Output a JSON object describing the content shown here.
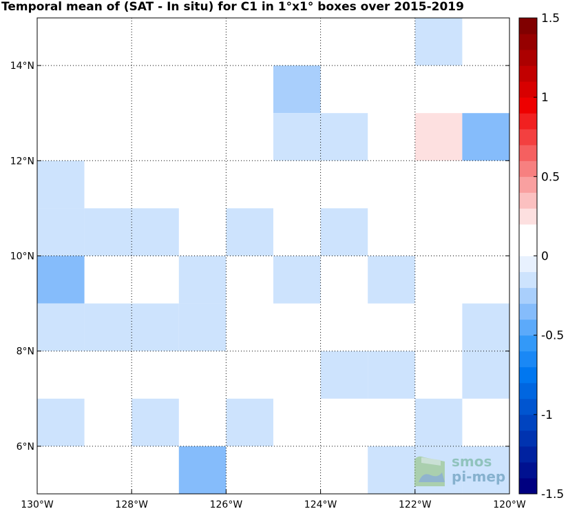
{
  "chart_data": {
    "type": "heatmap",
    "title": "Temporal mean of (SAT - In situ) for C1 in 1°x1° boxes over 2015-2019",
    "xlim": [
      -130,
      -120
    ],
    "ylim": [
      5,
      15
    ],
    "xticks": [
      {
        "v": -130,
        "label": "130°W"
      },
      {
        "v": -128,
        "label": "128°W"
      },
      {
        "v": -126,
        "label": "126°W"
      },
      {
        "v": -124,
        "label": "124°W"
      },
      {
        "v": -122,
        "label": "122°W"
      },
      {
        "v": -120,
        "label": "120°W"
      }
    ],
    "yticks": [
      {
        "v": 6,
        "label": "6°N"
      },
      {
        "v": 8,
        "label": "8°N"
      },
      {
        "v": 10,
        "label": "10°N"
      },
      {
        "v": 12,
        "label": "12°N"
      },
      {
        "v": 14,
        "label": "14°N"
      }
    ],
    "grid": true,
    "colorbar": {
      "range": [
        -1.5,
        1.5
      ],
      "ticks": [
        {
          "v": 1.5,
          "label": "1.5"
        },
        {
          "v": 1,
          "label": "1"
        },
        {
          "v": 0.5,
          "label": "0.5"
        },
        {
          "v": 0,
          "label": "0"
        },
        {
          "v": -0.5,
          "label": "-0.5"
        },
        {
          "v": -1,
          "label": "-1"
        },
        {
          "v": -1.5,
          "label": "-1.5"
        }
      ],
      "colors": [
        "#000080",
        "#001190",
        "#0022a0",
        "#0033b0",
        "#0044c0",
        "#0055d0",
        "#0066e0",
        "#0077f0",
        "#1a88f5",
        "#3399f8",
        "#5caafa",
        "#85bcfb",
        "#a9cffc",
        "#cde3fd",
        "#e8f1fe",
        "#ffffff",
        "#ffffff",
        "#fde0e0",
        "#fbc0c0",
        "#f9a0a0",
        "#f78080",
        "#f56060",
        "#f34040",
        "#f12020",
        "#ee0000",
        "#d80000",
        "#c20000",
        "#ac0000",
        "#960000",
        "#800000"
      ]
    },
    "cells": [
      {
        "lon": -121.5,
        "lat": 14.5,
        "value": -0.2
      },
      {
        "lon": -129.5,
        "lat": 13.5,
        "value": 0.15
      },
      {
        "lon": -124.5,
        "lat": 13.5,
        "value": -0.25
      },
      {
        "lon": -124.5,
        "lat": 12.5,
        "value": -0.1
      },
      {
        "lon": -123.5,
        "lat": 12.5,
        "value": -0.1
      },
      {
        "lon": -121.5,
        "lat": 12.5,
        "value": 0.25
      },
      {
        "lon": -120.5,
        "lat": 12.5,
        "value": -0.3
      },
      {
        "lon": -129.5,
        "lat": 11.5,
        "value": -0.1
      },
      {
        "lon": -128.5,
        "lat": 11.5,
        "value": 0.15
      },
      {
        "lon": -129.5,
        "lat": 10.5,
        "value": -0.2
      },
      {
        "lon": -128.5,
        "lat": 10.5,
        "value": -0.1
      },
      {
        "lon": -127.5,
        "lat": 10.5,
        "value": -0.1
      },
      {
        "lon": -125.5,
        "lat": 10.5,
        "value": -0.1
      },
      {
        "lon": -123.5,
        "lat": 10.5,
        "value": -0.1
      },
      {
        "lon": -129.5,
        "lat": 9.5,
        "value": -0.3
      },
      {
        "lon": -126.5,
        "lat": 9.5,
        "value": -0.1
      },
      {
        "lon": -124.5,
        "lat": 9.5,
        "value": -0.1
      },
      {
        "lon": -122.5,
        "lat": 9.5,
        "value": -0.1
      },
      {
        "lon": -129.5,
        "lat": 8.5,
        "value": -0.2
      },
      {
        "lon": -128.5,
        "lat": 8.5,
        "value": -0.1
      },
      {
        "lon": -127.5,
        "lat": 8.5,
        "value": -0.1
      },
      {
        "lon": -126.5,
        "lat": 8.5,
        "value": -0.1
      },
      {
        "lon": -120.5,
        "lat": 8.5,
        "value": -0.1
      },
      {
        "lon": -123.5,
        "lat": 7.5,
        "value": -0.1
      },
      {
        "lon": -122.5,
        "lat": 7.5,
        "value": -0.1
      },
      {
        "lon": -120.5,
        "lat": 7.5,
        "value": -0.1
      },
      {
        "lon": -129.5,
        "lat": 6.5,
        "value": -0.1
      },
      {
        "lon": -127.5,
        "lat": 6.5,
        "value": -0.2
      },
      {
        "lon": -125.5,
        "lat": 6.5,
        "value": -0.2
      },
      {
        "lon": -121.5,
        "lat": 6.5,
        "value": -0.1
      },
      {
        "lon": -126.5,
        "lat": 5.5,
        "value": -0.3
      },
      {
        "lon": -122.5,
        "lat": 5.5,
        "value": -0.1
      },
      {
        "lon": -121.5,
        "lat": 5.5,
        "value": -0.1
      },
      {
        "lon": -120.5,
        "lat": 5.5,
        "value": -0.2
      }
    ]
  },
  "watermark": {
    "line1": "smos",
    "line2": "pi-mep",
    "icon": "pi-mep-logo-icon"
  }
}
